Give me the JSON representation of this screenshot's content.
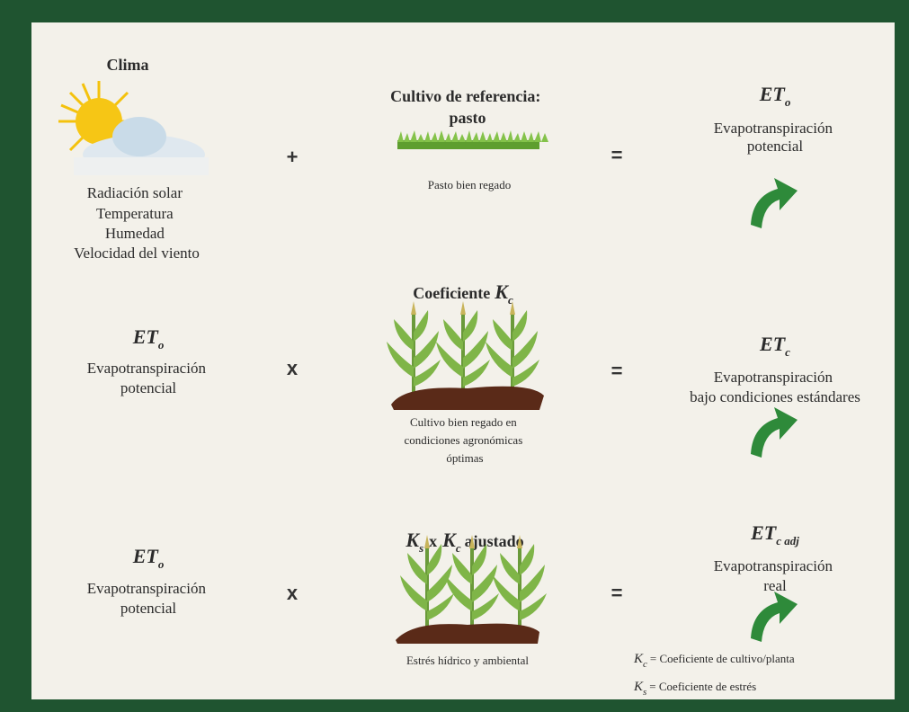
{
  "rows": [
    {
      "left": {
        "title": "Clima",
        "lines": [
          "Radiación solar",
          "Temperatura",
          "Humedad",
          "Velocidad del viento"
        ]
      },
      "operator": "+",
      "middle": {
        "title_lines": [
          "Cultivo de referencia:",
          "pasto"
        ],
        "caption": [
          "Pasto bien regado"
        ]
      },
      "equals": "=",
      "result": {
        "symbol": "ET",
        "subscript": "o",
        "lines": [
          "Evapotranspiración",
          "potencial"
        ]
      }
    },
    {
      "left": {
        "symbol": "ET",
        "subscript": "o",
        "lines": [
          "Evapotranspiración",
          "potencial"
        ]
      },
      "operator": "x",
      "middle": {
        "title": "Coeficiente",
        "symbol": "K",
        "subscript": "c",
        "caption": [
          "Cultivo bien regado en",
          "condiciones agronómicas",
          "óptimas"
        ]
      },
      "equals": "=",
      "result": {
        "symbol": "ET",
        "subscript": "c",
        "lines": [
          "Evapotranspiración",
          "bajo condiciones estándares"
        ]
      }
    },
    {
      "left": {
        "symbol": "ET",
        "subscript": "o",
        "lines": [
          "Evapotranspiración",
          "potencial"
        ]
      },
      "operator": "x",
      "middle": {
        "symbol_1": "K",
        "subscript_1": "s",
        "times": "x",
        "symbol_2": "K",
        "subscript_2": "c",
        "title": "ajustado",
        "caption": [
          "Estrés hídrico y ambiental"
        ]
      },
      "equals": "=",
      "result": {
        "symbol": "ET",
        "subscript": "c adj",
        "lines": [
          "Evapotranspiración",
          "real"
        ]
      }
    }
  ],
  "legend": [
    {
      "symbol": "K",
      "subscript": "c",
      "text": "= Coeficiente de cultivo/planta"
    },
    {
      "symbol": "K",
      "subscript": "s",
      "text": "= Coeficiente de estrés"
    }
  ]
}
